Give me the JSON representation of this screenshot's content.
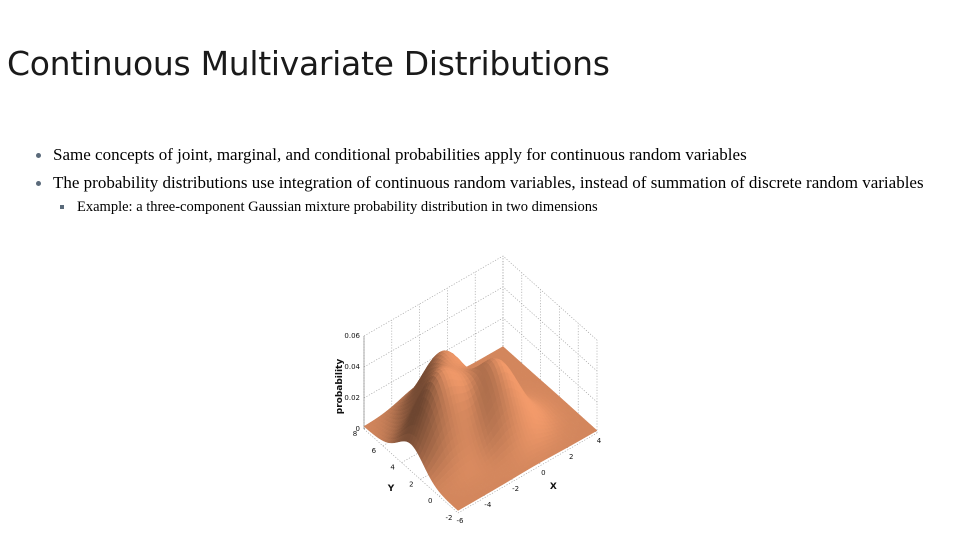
{
  "slide": {
    "title": "Continuous Multivariate Distributions",
    "bullets": [
      "Same concepts of joint, marginal, and conditional probabilities apply for continuous random variables",
      "The probability distributions use integration of continuous random variables, instead of summation of discrete random variables"
    ],
    "sub_bullets": [
      "Example: a three-component Gaussian mixture probability distribution in two dimensions"
    ]
  },
  "figure": {
    "surface_color": "#d98a5f",
    "chart_data": {
      "type": "surface",
      "xlabel": "X",
      "ylabel": "Y",
      "zlabel": "probability",
      "x_ticks": [
        "-6",
        "-4",
        "-2",
        "0",
        "2",
        "4"
      ],
      "y_ticks": [
        "-2",
        "0",
        "2",
        "4",
        "6",
        "8"
      ],
      "z_ticks": [
        "0",
        "0.02",
        "0.04",
        "0.06"
      ],
      "xlim": [
        -6,
        4
      ],
      "ylim": [
        -2,
        8
      ],
      "zlim": [
        0,
        0.06
      ],
      "grid": true,
      "components": [
        {
          "peak": 0.047,
          "x": -4,
          "y": 3
        },
        {
          "peak": 0.045,
          "x": -0.5,
          "y": 2
        },
        {
          "peak": 0.038,
          "x": -2,
          "y": 5.5
        }
      ]
    }
  }
}
